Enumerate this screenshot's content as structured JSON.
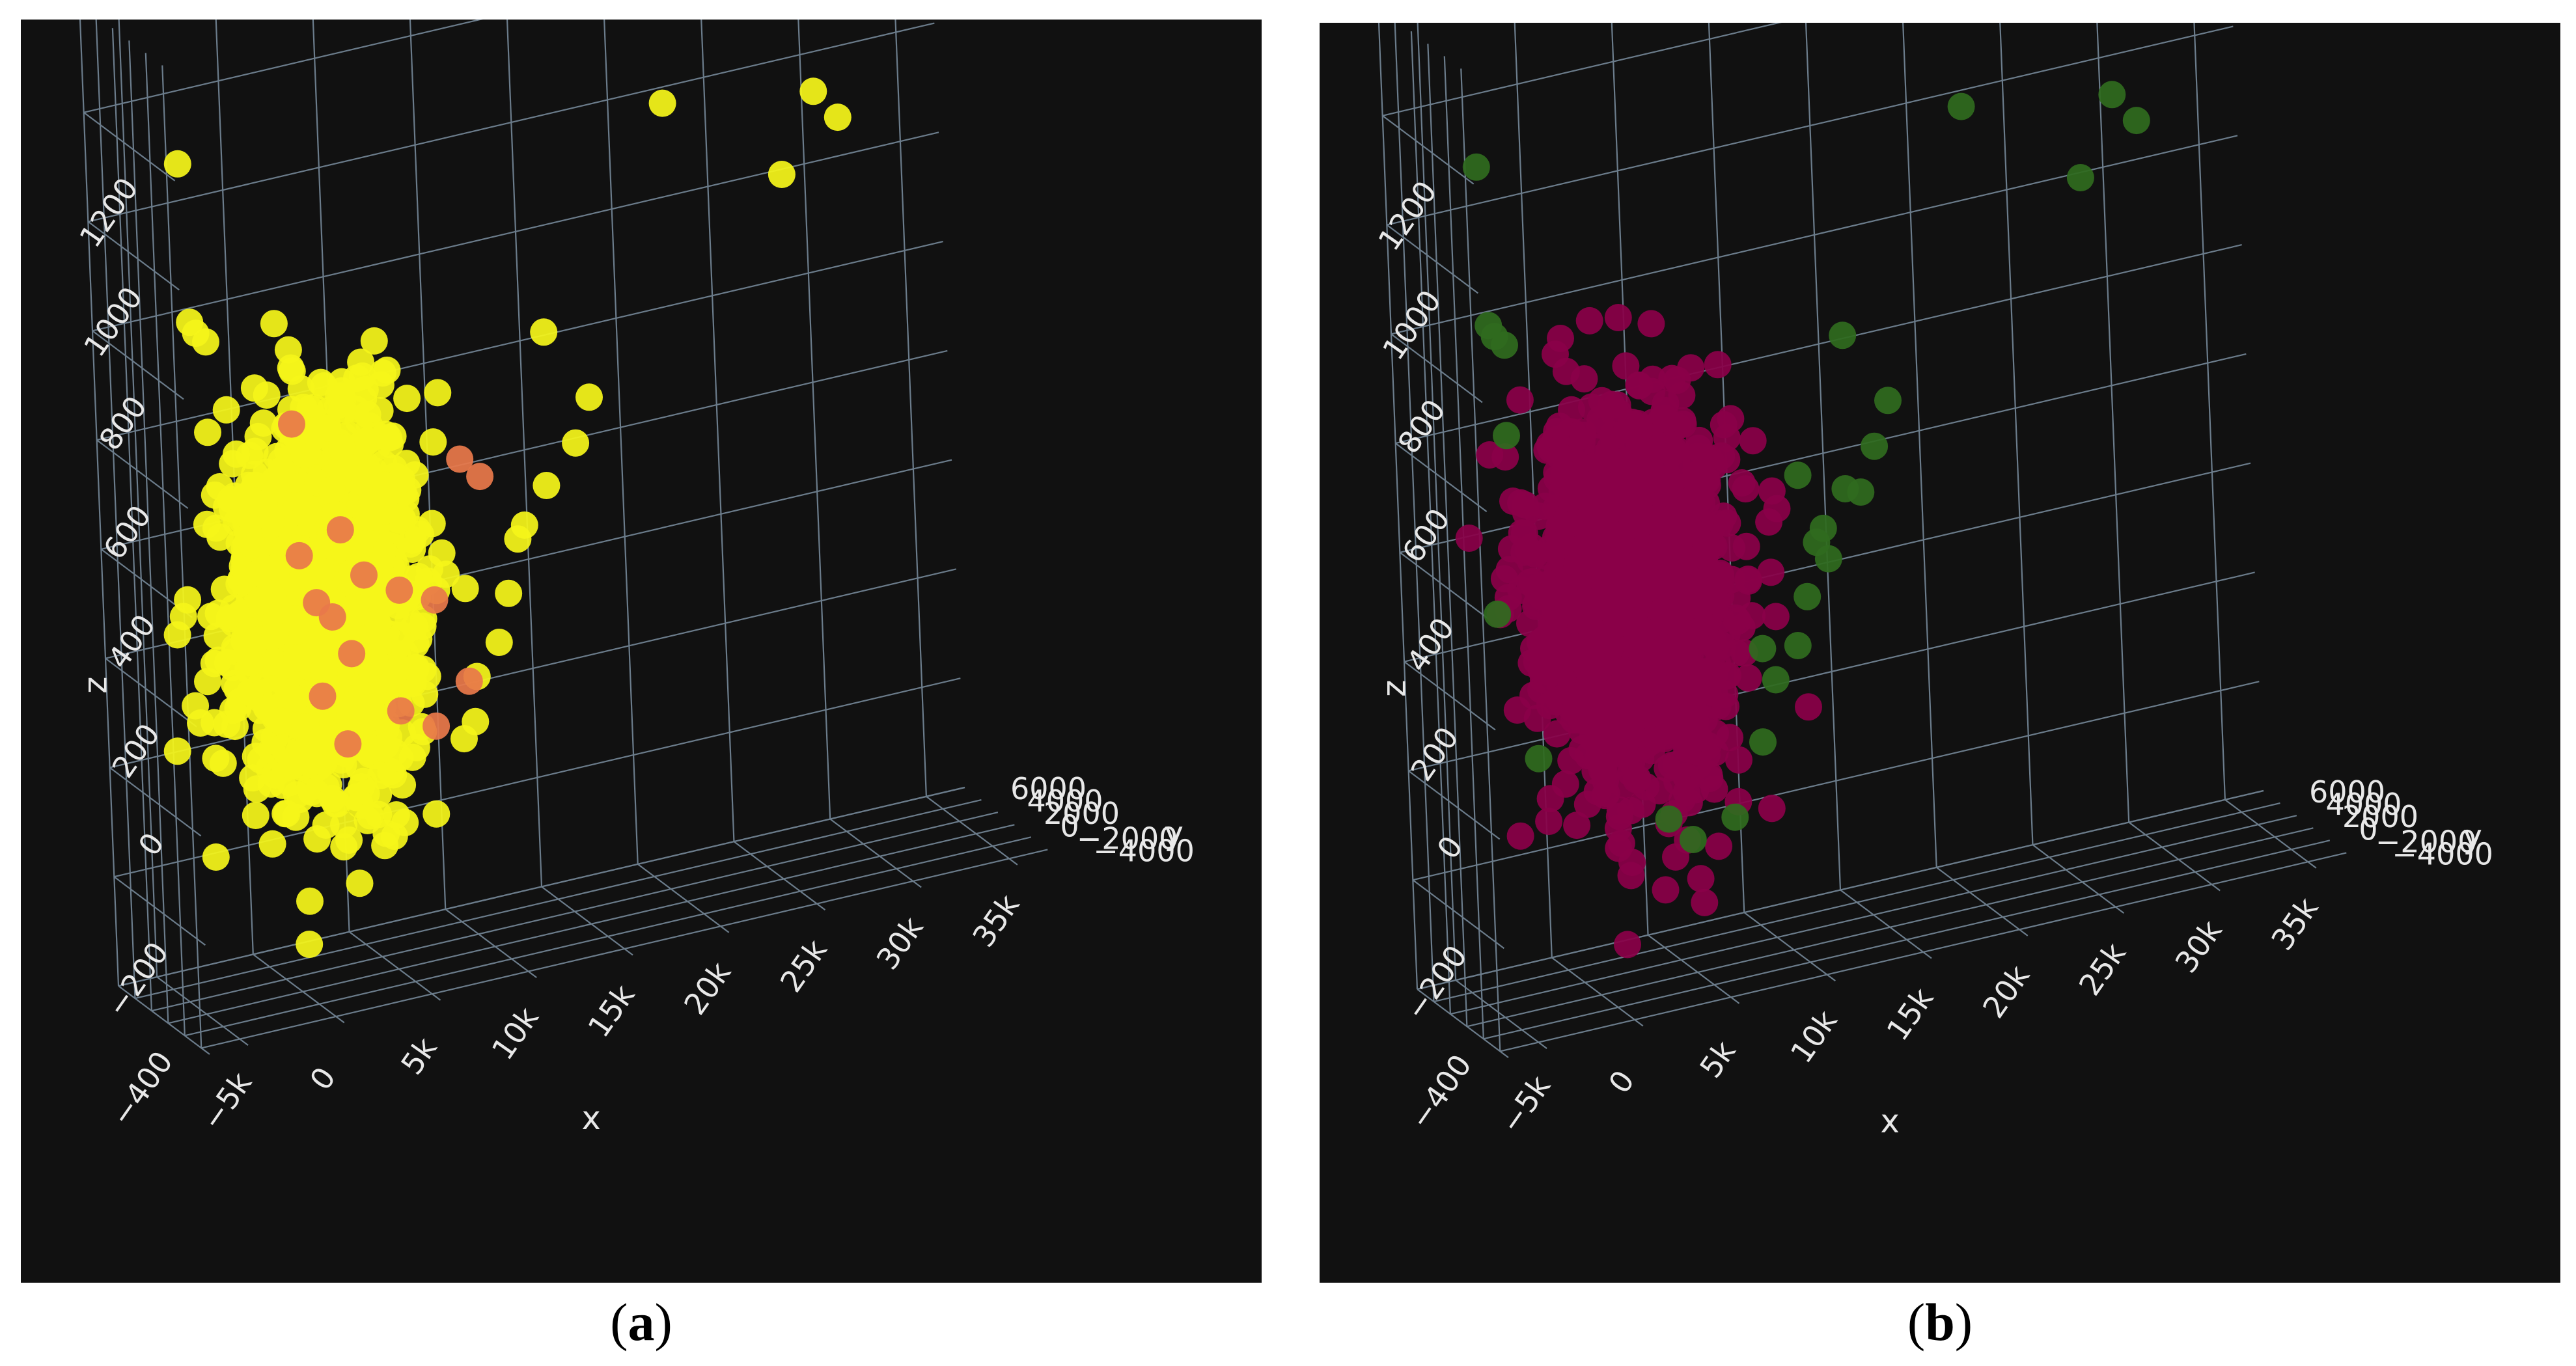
{
  "chart_data": [
    {
      "type": "scatter",
      "panel_label": "a",
      "xlabel": "x",
      "ylabel": "y",
      "zlabel": "z",
      "xlim": [
        -7000,
        37000
      ],
      "ylim": [
        -5000,
        6000
      ],
      "zlim": [
        -400,
        1400
      ],
      "x_ticks": [
        "−5k",
        "0",
        "5k",
        "10k",
        "15k",
        "20k",
        "25k",
        "30k",
        "35k"
      ],
      "y_ticks": [
        "−4000",
        "−2000",
        "0",
        "2000",
        "4000",
        "6000"
      ],
      "z_ticks": [
        "−400",
        "−200",
        "0",
        "200",
        "400",
        "600",
        "800",
        "1000",
        "1200"
      ],
      "grid": true,
      "background": "#111111",
      "series": [
        {
          "color": "#f5f51a",
          "cluster": {
            "center": [
              2000,
              0,
              300
            ],
            "spread": [
              2200,
              1800,
              170
            ],
            "count": 1400
          },
          "points": [
            [
              -6000,
              -3000,
              1200
            ],
            [
              -5500,
              -2500,
              900
            ],
            [
              -5000,
              -2000,
              870
            ],
            [
              -4500,
              -2000,
              850
            ],
            [
              -5000,
              -3000,
              700
            ],
            [
              22000,
              4000,
              1000
            ],
            [
              30000,
              4500,
              950
            ],
            [
              31000,
              4000,
              900
            ],
            [
              28000,
              4000,
              820
            ],
            [
              15000,
              3000,
              650
            ],
            [
              17000,
              2500,
              520
            ],
            [
              16000,
              2000,
              450
            ],
            [
              14000,
              1000,
              400
            ],
            [
              12000,
              0,
              330
            ],
            [
              11000,
              -1000,
              250
            ],
            [
              10000,
              -2000,
              180
            ],
            [
              9000,
              -1500,
              120
            ],
            [
              3000,
              -2000,
              -80
            ],
            [
              4000,
              -2500,
              -120
            ],
            [
              6000,
              -3000,
              -90
            ],
            [
              8000,
              -2000,
              20
            ],
            [
              13000,
              1500,
              330
            ],
            [
              7000,
              0,
              380
            ],
            [
              9000,
              2000,
              600
            ]
          ]
        },
        {
          "color": "#e8784a",
          "points": [
            [
              1000,
              1000,
              620
            ],
            [
              500,
              -500,
              400
            ],
            [
              1500,
              0,
              300
            ],
            [
              2500,
              500,
              260
            ],
            [
              3000,
              -500,
              200
            ],
            [
              1000,
              -1500,
              150
            ],
            [
              4000,
              0,
              330
            ],
            [
              6000,
              500,
              280
            ],
            [
              8000,
              1000,
              240
            ],
            [
              10000,
              2000,
              470
            ],
            [
              11000,
              2000,
              430
            ],
            [
              9000,
              -500,
              100
            ],
            [
              7000,
              -1000,
              40
            ],
            [
              2000,
              -2000,
              60
            ],
            [
              3500,
              1500,
              400
            ],
            [
              5000,
              -1500,
              90
            ]
          ]
        }
      ]
    },
    {
      "type": "scatter",
      "panel_label": "b",
      "xlabel": "x",
      "ylabel": "y",
      "zlabel": "z",
      "xlim": [
        -7000,
        37000
      ],
      "ylim": [
        -5000,
        6000
      ],
      "zlim": [
        -400,
        1400
      ],
      "x_ticks": [
        "−5k",
        "0",
        "5k",
        "10k",
        "15k",
        "20k",
        "25k",
        "30k",
        "35k"
      ],
      "y_ticks": [
        "−4000",
        "−2000",
        "0",
        "2000",
        "4000",
        "6000"
      ],
      "z_ticks": [
        "−400",
        "−200",
        "0",
        "200",
        "400",
        "600",
        "800",
        "1000",
        "1200"
      ],
      "grid": true,
      "background": "#111111",
      "series": [
        {
          "color": "#8a0048",
          "cluster": {
            "center": [
              2500,
              0,
              300
            ],
            "spread": [
              2300,
              1800,
              170
            ],
            "count": 1400
          },
          "points": [
            [
              1500,
              1000,
              620
            ],
            [
              1000,
              2000,
              600
            ],
            [
              5000,
              1000,
              480
            ],
            [
              7000,
              2000,
              420
            ],
            [
              9000,
              1500,
              330
            ],
            [
              10000,
              1000,
              280
            ],
            [
              8000,
              -500,
              120
            ]
          ]
        },
        {
          "color": "#2f6a1e",
          "points": [
            [
              -6000,
              -3000,
              1200
            ],
            [
              -5500,
              -2500,
              900
            ],
            [
              -5000,
              -2000,
              870
            ],
            [
              -4500,
              -2000,
              850
            ],
            [
              -5000,
              -3000,
              700
            ],
            [
              22000,
              4000,
              1000
            ],
            [
              30000,
              4500,
              950
            ],
            [
              31000,
              4000,
              900
            ],
            [
              28000,
              4000,
              820
            ],
            [
              15000,
              3000,
              650
            ],
            [
              17000,
              2500,
              520
            ],
            [
              16000,
              2000,
              450
            ],
            [
              14000,
              1000,
              400
            ],
            [
              12000,
              0,
              330
            ],
            [
              11000,
              -1000,
              250
            ],
            [
              10000,
              -2000,
              180
            ],
            [
              9000,
              -1500,
              120
            ],
            [
              3000,
              -2000,
              -80
            ],
            [
              4000,
              -2500,
              -120
            ],
            [
              6000,
              -3000,
              -90
            ],
            [
              8000,
              -2000,
              20
            ],
            [
              13000,
              1500,
              330
            ],
            [
              -5000,
              -1000,
              350
            ],
            [
              -4000,
              -3000,
              100
            ],
            [
              12000,
              2000,
              430
            ],
            [
              13000,
              1000,
              280
            ],
            [
              9000,
              0,
              160
            ],
            [
              15000,
              1500,
              380
            ]
          ]
        }
      ]
    }
  ]
}
